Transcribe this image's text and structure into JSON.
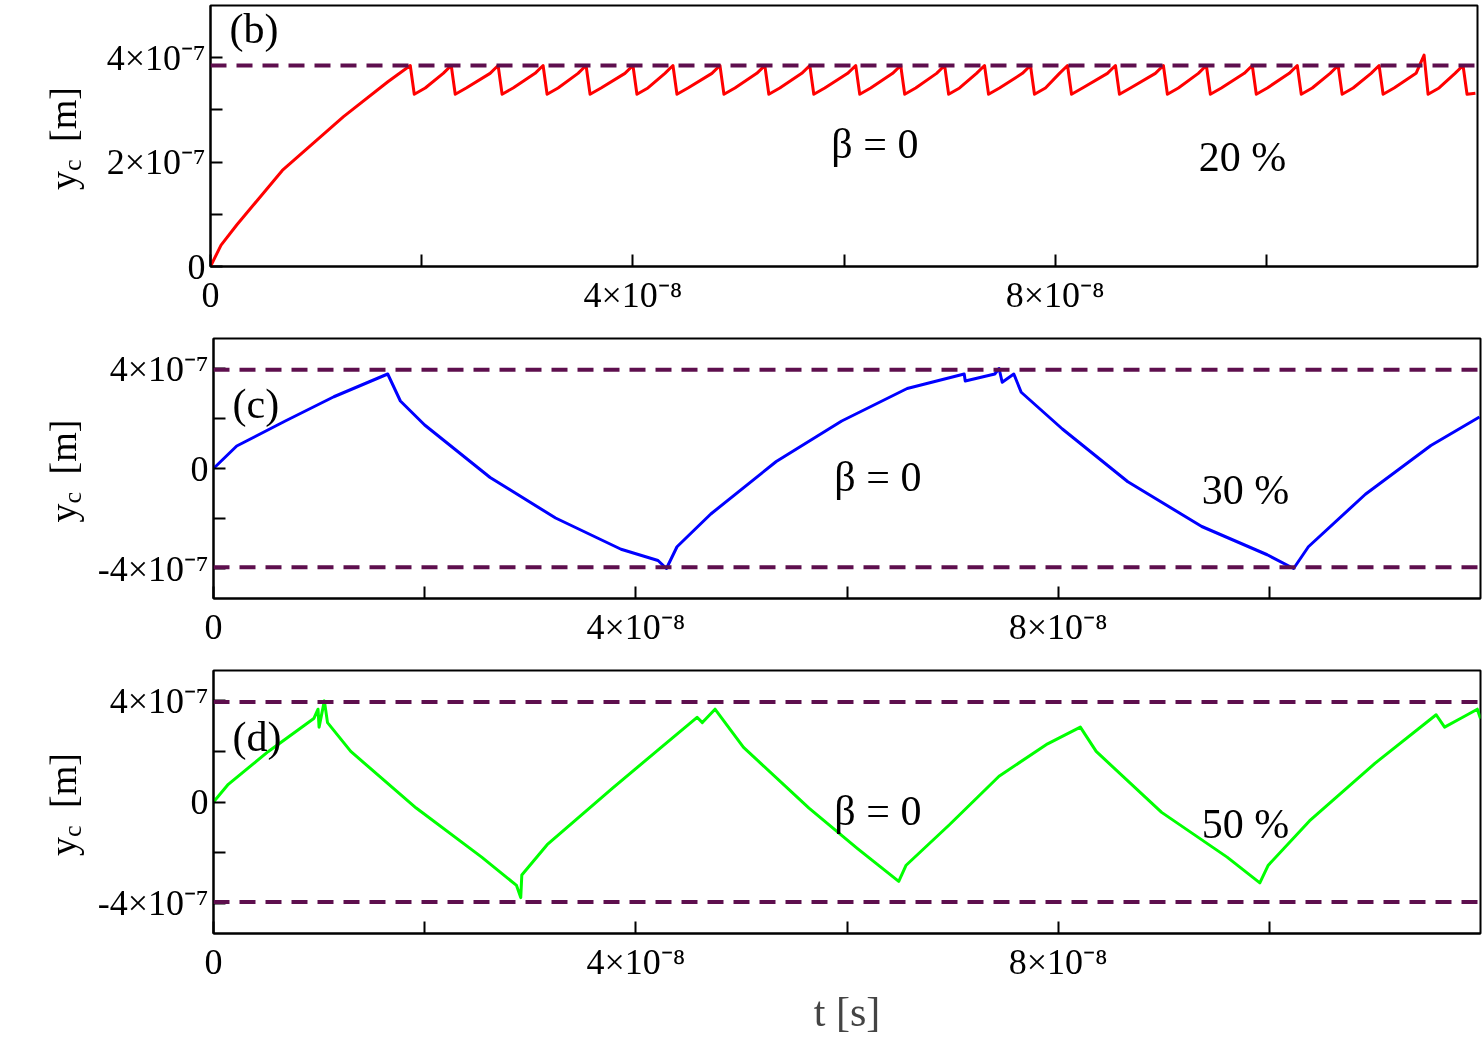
{
  "chart_data": [
    {
      "type": "line",
      "ylabel": "y$_{c}$ [m]",
      "series": [
        {
          "color": "#ff0000",
          "x": [
            0,
            1e-09,
            2.5e-09,
            6.8e-09,
            1.26e-08,
            1.68e-08,
            1.892e-08,
            1.93e-08,
            2.034e-08,
            2.204e-08,
            2.28e-08,
            2.318e-08,
            2.422e-08,
            2.648e-08,
            2.724e-08,
            2.762e-08,
            2.866e-08,
            3.074e-08,
            3.15e-08,
            3.188e-08,
            3.292e-08,
            3.481e-08,
            3.557e-08,
            3.595e-08,
            3.699e-08,
            3.925e-08,
            4.001e-08,
            4.039e-08,
            4.143e-08,
            4.304e-08,
            4.38e-08,
            4.418e-08,
            4.522e-08,
            4.749e-08,
            4.825e-08,
            4.863e-08,
            4.967e-08,
            5.174e-08,
            5.25e-08,
            5.288e-08,
            5.392e-08,
            5.6e-08,
            5.676e-08,
            5.714e-08,
            5.818e-08,
            6.035e-08,
            6.111e-08,
            6.149e-08,
            6.253e-08,
            6.461e-08,
            6.537e-08,
            6.575e-08,
            6.679e-08,
            6.877e-08,
            6.953e-08,
            6.991e-08,
            7.095e-08,
            7.255e-08,
            7.331e-08,
            7.369e-08,
            7.473e-08,
            7.69e-08,
            7.766e-08,
            7.804e-08,
            7.908e-08,
            8.041e-08,
            8.117e-08,
            8.155e-08,
            8.259e-08,
            8.495e-08,
            8.571e-08,
            8.609e-08,
            8.713e-08,
            8.949e-08,
            9.025e-08,
            9.063e-08,
            9.167e-08,
            9.356e-08,
            9.432e-08,
            9.47e-08,
            9.574e-08,
            9.791e-08,
            9.867e-08,
            9.905e-08,
            1.0009e-07,
            1.0217e-07,
            1.0293e-07,
            1.0331e-07,
            1.0435e-07,
            1.0604e-07,
            1.068e-07,
            1.0718e-07,
            1.0822e-07,
            1.0992e-07,
            1.1068e-07,
            1.1106e-07,
            1.121e-07,
            1.1418e-07,
            1.1494e-07,
            1.1532e-07,
            1.1636e-07,
            1.1787e-07,
            1.1863e-07,
            1.1901e-07,
            1.198e-07
          ],
          "values": [
            0,
            4.1e-08,
            8e-08,
            1.84e-07,
            2.87e-07,
            3.54e-07,
            3.85e-07,
            3.3e-07,
            3.42e-07,
            3.7e-07,
            3.85e-07,
            3.3e-07,
            3.42e-07,
            3.7e-07,
            3.85e-07,
            3.3e-07,
            3.42e-07,
            3.7e-07,
            3.85e-07,
            3.3e-07,
            3.42e-07,
            3.7e-07,
            3.85e-07,
            3.3e-07,
            3.42e-07,
            3.7e-07,
            3.85e-07,
            3.3e-07,
            3.42e-07,
            3.7e-07,
            3.85e-07,
            3.3e-07,
            3.42e-07,
            3.7e-07,
            3.85e-07,
            3.3e-07,
            3.42e-07,
            3.7e-07,
            3.85e-07,
            3.3e-07,
            3.42e-07,
            3.7e-07,
            3.85e-07,
            3.3e-07,
            3.42e-07,
            3.7e-07,
            3.85e-07,
            3.3e-07,
            3.42e-07,
            3.7e-07,
            3.85e-07,
            3.3e-07,
            3.42e-07,
            3.7e-07,
            3.85e-07,
            3.3e-07,
            3.42e-07,
            3.7e-07,
            3.85e-07,
            3.3e-07,
            3.42e-07,
            3.7e-07,
            3.85e-07,
            3.3e-07,
            3.42e-07,
            3.7e-07,
            3.85e-07,
            3.3e-07,
            3.42e-07,
            3.7e-07,
            3.85e-07,
            3.3e-07,
            3.42e-07,
            3.7e-07,
            3.85e-07,
            3.3e-07,
            3.42e-07,
            3.7e-07,
            3.85e-07,
            3.3e-07,
            3.42e-07,
            3.7e-07,
            3.85e-07,
            3.3e-07,
            3.42e-07,
            3.7e-07,
            3.85e-07,
            3.3e-07,
            3.42e-07,
            3.7e-07,
            3.85e-07,
            3.3e-07,
            3.42e-07,
            3.7e-07,
            3.85e-07,
            3.3e-07,
            3.42e-07,
            3.7e-07,
            4.05e-07,
            3.3e-07,
            3.42e-07,
            3.7e-07,
            3.85e-07,
            3.3e-07,
            3.32e-07
          ]
        }
      ],
      "xlim": [
        0,
        1.2e-07
      ],
      "xticks": [
        0,
        {
          "value": 2e-08,
          "label": null
        },
        {
          "value": 4e-08,
          "label": "4×10⁻⁸"
        },
        {
          "value": 6e-08,
          "label": null
        },
        {
          "value": 8e-08,
          "label": "8×10⁻⁸"
        },
        {
          "value": 1e-07,
          "label": null
        }
      ],
      "ylim": [
        0,
        5e-07
      ],
      "yticks": [
        0,
        {
          "value": 1e-07,
          "label": null
        },
        {
          "value": 2e-07,
          "label": "2×10⁻⁷"
        },
        {
          "value": 3e-07,
          "label": null
        },
        {
          "value": 4e-07,
          "label": "4×10⁻⁷"
        }
      ],
      "ref_lines": [
        {
          "axis": "y",
          "value": 3.85e-07,
          "color": "#5e0f4e",
          "line_style": "dashed"
        }
      ],
      "annotations": [
        "(b)",
        "β = 0",
        "20 %"
      ]
    },
    {
      "type": "line",
      "ylabel": "y$_{c}$ [m]",
      "series": [
        {
          "color": "#0000ff",
          "x": [
            0,
            2.2e-09,
            6.8e-09,
            1.14e-08,
            1.65e-08,
            1.77e-08,
            2e-08,
            2.62e-08,
            3.24e-08,
            3.86e-08,
            4.21e-08,
            4.29e-08,
            4.39e-08,
            4.71e-08,
            5.33e-08,
            5.95e-08,
            6.57e-08,
            7.11e-08,
            7.12e-08,
            7.4e-08,
            7.44e-08,
            7.47e-08,
            7.58e-08,
            7.65e-08,
            8.04e-08,
            8.66e-08,
            9.36e-08,
            9.98e-08,
            1.023e-07,
            1.037e-07,
            1.091e-07,
            1.153e-07,
            1.199e-07
          ],
          "values": [
            0,
            9e-08,
            1.9e-07,
            2.87e-07,
            3.78e-07,
            2.7e-07,
            1.74e-07,
            -3.6e-08,
            -1.98e-07,
            -3.23e-07,
            -3.68e-07,
            -4e-07,
            -3.13e-07,
            -1.82e-07,
            2.8e-08,
            1.9e-07,
            3.2e-07,
            3.78e-07,
            3.5e-07,
            3.78e-07,
            4e-07,
            3.45e-07,
            3.78e-07,
            3.05e-07,
            1.58e-07,
            -5.3e-08,
            -2.32e-07,
            -3.45e-07,
            -4e-07,
            -3.13e-07,
            -1.03e-07,
            9.2e-08,
            2.06e-07
          ]
        }
      ],
      "xlim": [
        0,
        1.2e-07
      ],
      "xticks": [
        0,
        {
          "value": 2e-08,
          "label": null
        },
        {
          "value": 4e-08,
          "label": "4×10⁻⁸"
        },
        {
          "value": 6e-08,
          "label": null
        },
        {
          "value": 8e-08,
          "label": "8×10⁻⁸"
        },
        {
          "value": 1e-07,
          "label": null
        }
      ],
      "ylim": [
        -5.2e-07,
        5.2e-07
      ],
      "yticks": [
        {
          "value": -4e-07,
          "label": "-4×10⁻⁷"
        },
        {
          "value": -2e-07,
          "label": null
        },
        0,
        {
          "value": 2e-07,
          "label": null
        },
        {
          "value": 4e-07,
          "label": "4×10⁻⁷"
        }
      ],
      "ref_lines": [
        {
          "axis": "y",
          "value": 3.95e-07,
          "color": "#5e0f4e",
          "line_style": "dashed"
        },
        {
          "axis": "y",
          "value": -3.95e-07,
          "color": "#5e0f4e",
          "line_style": "dashed"
        }
      ],
      "annotations": [
        "(c)",
        "β = 0",
        "30 %"
      ]
    },
    {
      "type": "line",
      "ylabel": "y$_{c}$ [m]",
      "xlabel": "t [s]",
      "series": [
        {
          "color": "#00ff00",
          "x": [
            0,
            1.4e-09,
            5.2e-09,
            9.5e-09,
            9.9e-09,
            1e-08,
            1.05e-08,
            1.08e-08,
            1.3e-08,
            1.92e-08,
            2.54e-08,
            2.87e-08,
            2.91e-08,
            2.92e-08,
            3.16e-08,
            3.78e-08,
            4.24e-08,
            4.58e-08,
            4.63e-08,
            4.75e-08,
            5.02e-08,
            5.64e-08,
            6.1e-08,
            6.49e-08,
            6.56e-08,
            6.97e-08,
            7.44e-08,
            7.9e-08,
            8.21e-08,
            8.36e-08,
            8.98e-08,
            9.6e-08,
            9.91e-08,
            9.99e-08,
            1.038e-07,
            1.1e-07,
            1.158e-07,
            1.166e-07,
            1.181e-07,
            1.197e-07,
            1.2e-07
          ],
          "values": [
            0,
            7e-08,
            2e-07,
            3.3e-07,
            3.67e-07,
            2.96e-07,
            4e-07,
            3.14e-07,
            2e-07,
            -2.4e-08,
            -2.18e-07,
            -3.3e-07,
            -3.78e-07,
            -2.89e-07,
            -1.69e-07,
            5.5e-08,
            2.16e-07,
            3.35e-07,
            3.14e-07,
            3.67e-07,
            2.16e-07,
            -2.4e-08,
            -1.84e-07,
            -3.14e-07,
            -2.5e-07,
            -9e-08,
            1.02e-07,
            2.3e-07,
            2.96e-07,
            2e-07,
            -4.1e-08,
            -2.18e-07,
            -3.2e-07,
            -2.5e-07,
            -7.5e-08,
            1.53e-07,
            3.45e-07,
            2.96e-07,
            3.3e-07,
            3.67e-07,
            3.3e-07
          ]
        }
      ],
      "xlim": [
        0,
        1.2e-07
      ],
      "xticks": [
        0,
        {
          "value": 2e-08,
          "label": null
        },
        {
          "value": 4e-08,
          "label": "4×10⁻⁸"
        },
        {
          "value": 6e-08,
          "label": null
        },
        {
          "value": 8e-08,
          "label": "8×10⁻⁸"
        },
        {
          "value": 1e-07,
          "label": null
        }
      ],
      "ylim": [
        -5.2e-07,
        5.2e-07
      ],
      "yticks": [
        {
          "value": -4e-07,
          "label": "-4×10⁻⁷"
        },
        {
          "value": -2e-07,
          "label": null
        },
        0,
        {
          "value": 2e-07,
          "label": null
        },
        {
          "value": 4e-07,
          "label": "4×10⁻⁷"
        }
      ],
      "ref_lines": [
        {
          "axis": "y",
          "value": 3.95e-07,
          "color": "#5e0f4e",
          "line_style": "dashed"
        },
        {
          "axis": "y",
          "value": -3.95e-07,
          "color": "#5e0f4e",
          "line_style": "dashed"
        }
      ],
      "annotations": [
        "(d)",
        "β = 0",
        "50 %"
      ]
    }
  ]
}
